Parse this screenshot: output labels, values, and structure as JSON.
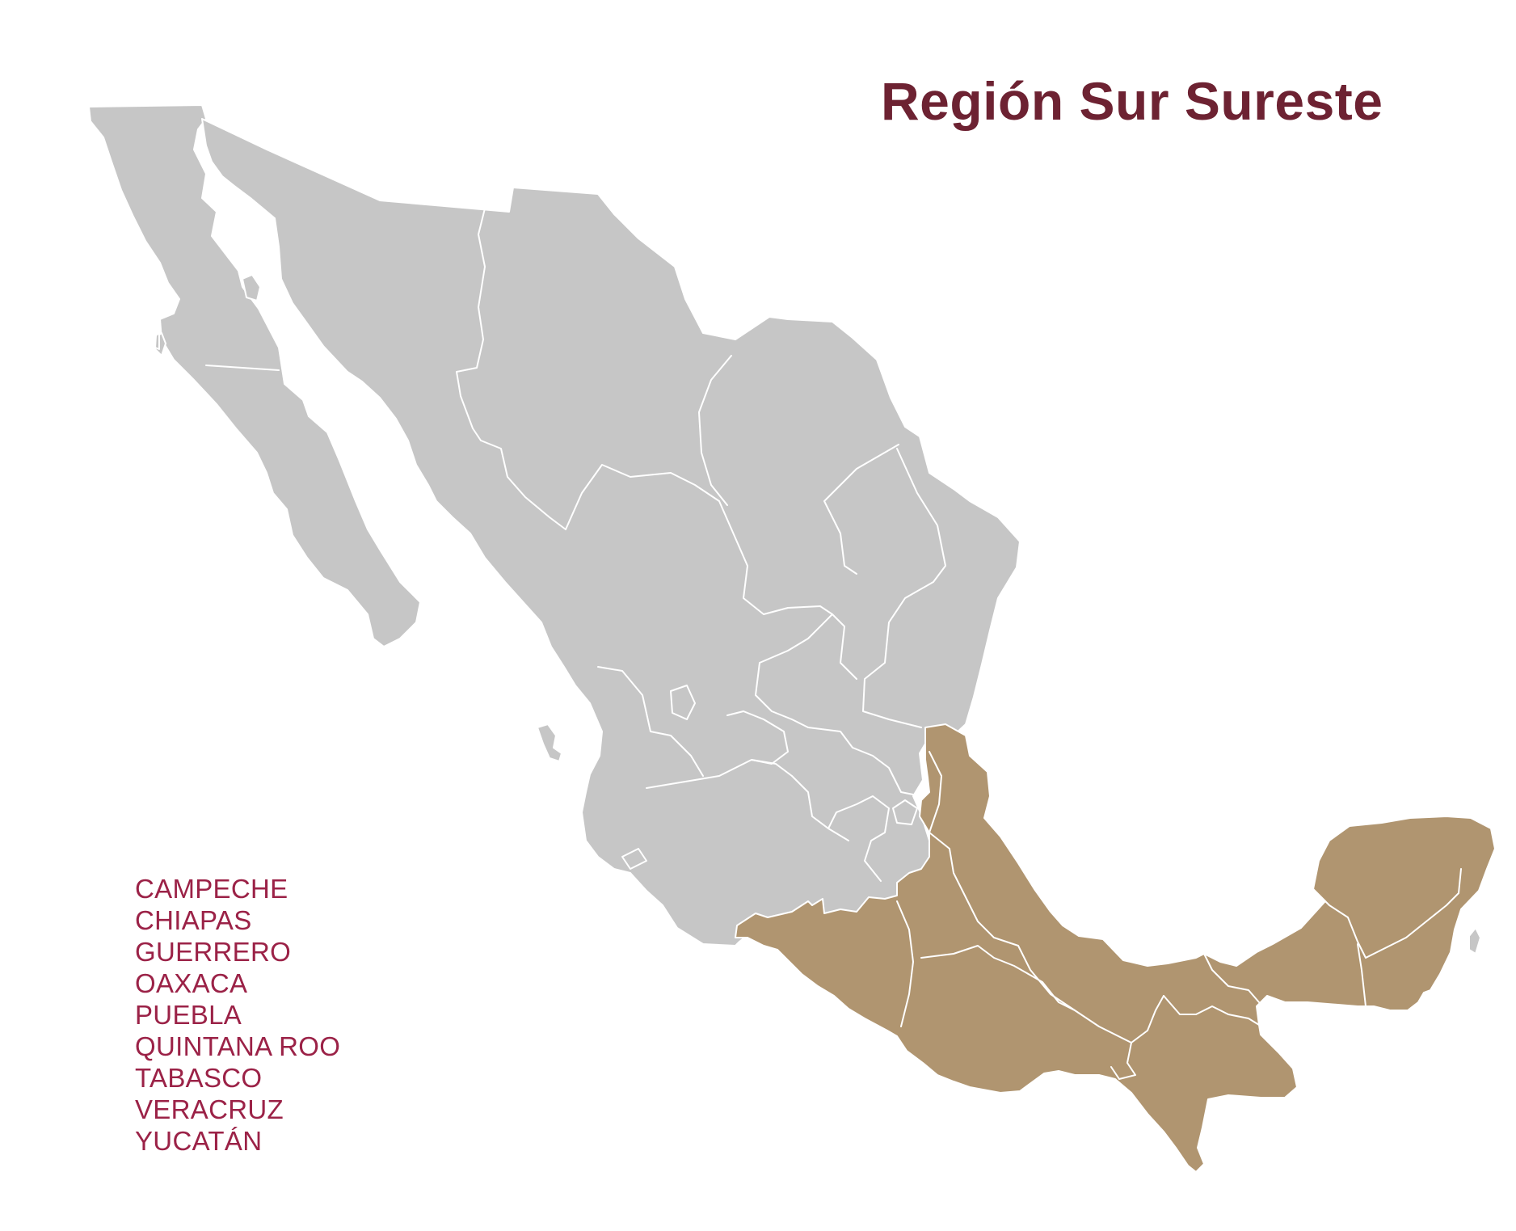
{
  "title": "Región Sur Sureste",
  "states": [
    "CAMPECHE",
    "CHIAPAS",
    "GUERRERO",
    "OAXACA",
    "PUEBLA",
    "QUINTANA ROO",
    "TABASCO",
    "VERACRUZ",
    "YUCATÁN"
  ],
  "colors": {
    "title": "#6d2232",
    "state_labels": "#9b2247",
    "highlighted_region": "#b09570",
    "other_states": "#c6c6c6",
    "state_borders": "#ffffff"
  }
}
